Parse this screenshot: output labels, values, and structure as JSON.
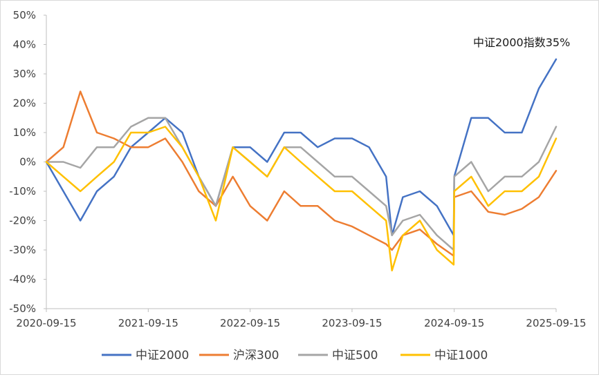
{
  "chart_data": {
    "type": "line",
    "title": "",
    "xlabel": "",
    "ylabel": "",
    "ylim": [
      -50,
      50
    ],
    "y_ticks": [
      "50%",
      "40%",
      "30%",
      "20%",
      "10%",
      "0%",
      "-10%",
      "-20%",
      "-30%",
      "-40%",
      "-50%"
    ],
    "x_ticks": [
      "2020-09-15",
      "2021-09-15",
      "2022-09-15",
      "2023-09-15",
      "2024-09-15",
      "2025-09-15"
    ],
    "grid": false,
    "legend_position": "bottom",
    "annotation": "中证2000指数35%",
    "x": [
      "2020-09-15",
      "2020-11-15",
      "2021-01-15",
      "2021-03-15",
      "2021-05-15",
      "2021-07-15",
      "2021-09-15",
      "2021-11-15",
      "2022-01-15",
      "2022-03-15",
      "2022-05-15",
      "2022-07-15",
      "2022-09-15",
      "2022-11-15",
      "2023-01-15",
      "2023-03-15",
      "2023-05-15",
      "2023-07-15",
      "2023-09-15",
      "2023-11-15",
      "2024-01-15",
      "2024-02-05",
      "2024-03-15",
      "2024-05-15",
      "2024-07-15",
      "2024-09-13",
      "2024-09-15",
      "2024-11-15",
      "2025-01-15",
      "2025-03-15",
      "2025-05-15",
      "2025-07-15",
      "2025-09-15"
    ],
    "series": [
      {
        "name": "中证2000",
        "color": "#4472C4",
        "values": [
          0,
          -10,
          -20,
          -10,
          -5,
          5,
          10,
          15,
          10,
          -5,
          -15,
          5,
          5,
          0,
          10,
          10,
          5,
          8,
          8,
          5,
          -5,
          -25,
          -12,
          -10,
          -15,
          -25,
          -5,
          15,
          15,
          10,
          10,
          25,
          35
        ]
      },
      {
        "name": "沪深300",
        "color": "#ED7D31",
        "values": [
          0,
          5,
          24,
          10,
          8,
          5,
          5,
          8,
          0,
          -10,
          -15,
          -5,
          -15,
          -20,
          -10,
          -15,
          -15,
          -20,
          -22,
          -25,
          -28,
          -30,
          -25,
          -23,
          -28,
          -32,
          -12,
          -10,
          -17,
          -18,
          -16,
          -12,
          -3
        ]
      },
      {
        "name": "中证500",
        "color": "#A5A5A5",
        "values": [
          0,
          0,
          -2,
          5,
          5,
          12,
          15,
          15,
          5,
          -5,
          -15,
          5,
          0,
          -5,
          5,
          5,
          0,
          -5,
          -5,
          -10,
          -15,
          -25,
          -20,
          -18,
          -25,
          -30,
          -5,
          0,
          -10,
          -5,
          -5,
          0,
          12
        ]
      },
      {
        "name": "中证1000",
        "color": "#FFC000",
        "values": [
          0,
          -5,
          -10,
          -5,
          0,
          10,
          10,
          12,
          5,
          -5,
          -20,
          5,
          0,
          -5,
          5,
          0,
          -5,
          -10,
          -10,
          -15,
          -20,
          -37,
          -25,
          -20,
          -30,
          -35,
          -10,
          -5,
          -15,
          -10,
          -10,
          -5,
          8
        ]
      }
    ]
  }
}
